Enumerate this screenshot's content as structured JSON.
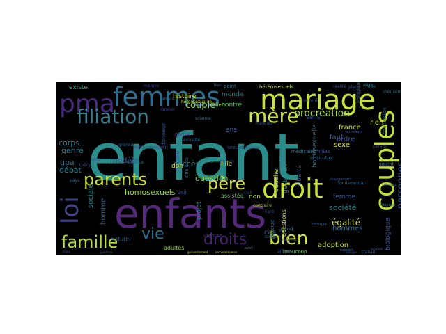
{
  "words": [
    {
      "text": "enfant",
      "color": "#2a8d8c",
      "rot": 0
    },
    {
      "text": "enfants",
      "color": "#55297a",
      "rot": 0
    },
    {
      "text": "mariage",
      "color": "#c9e23a",
      "rot": 0
    },
    {
      "text": "femmes",
      "color": "#2f6c8e",
      "rot": 0
    },
    {
      "text": "pma",
      "color": "#472d7b",
      "rot": 0
    },
    {
      "text": "couples",
      "color": "#c0e03a",
      "rot": -90
    },
    {
      "text": "droit",
      "color": "#c9e23a",
      "rot": 0
    },
    {
      "text": "filiation",
      "color": "#3f7f8e",
      "rot": 0
    },
    {
      "text": "mère",
      "color": "#d1e33f",
      "rot": 0
    },
    {
      "text": "parents",
      "color": "#c9e23a",
      "rot": 0
    },
    {
      "text": "père",
      "color": "#d8e54a",
      "rot": 0
    },
    {
      "text": "loi",
      "color": "#3f4788",
      "rot": -90
    },
    {
      "text": "famille",
      "color": "#b6dd48",
      "rot": 0
    },
    {
      "text": "vie",
      "color": "#2e6f8e",
      "rot": 0
    },
    {
      "text": "droits",
      "color": "#46226d",
      "rot": 0
    },
    {
      "text": "bien",
      "color": "#d3e33a",
      "rot": 0
    },
    {
      "text": "procréation",
      "color": "#a8db54",
      "rot": 0
    },
    {
      "text": "couple",
      "color": "#8dd24c",
      "rot": 0
    },
    {
      "text": "personnes",
      "color": "#3c5b8c",
      "rot": -90
    },
    {
      "text": "question",
      "color": "#8ad24e",
      "rot": 0
    },
    {
      "text": "homosexuels",
      "color": "#9fd83f",
      "rot": 0
    },
    {
      "text": "société",
      "color": "#26818e",
      "rot": 0
    },
    {
      "text": "égalité",
      "color": "#d7e54f",
      "rot": 0
    },
    {
      "text": "adoption",
      "color": "#c5e03a",
      "rot": 0
    },
    {
      "text": "gauche",
      "color": "#c2df3c",
      "rot": -90
    },
    {
      "text": "nature",
      "color": "#31558c",
      "rot": -90
    },
    {
      "text": "accès",
      "color": "#2a7c8e",
      "rot": 0
    },
    {
      "text": "france",
      "color": "#d2e43d",
      "rot": 0
    },
    {
      "text": "sexe",
      "color": "#d9e54c",
      "rot": 0
    },
    {
      "text": "hommes",
      "color": "#2d6d8e",
      "rot": 0
    },
    {
      "text": "homme",
      "color": "#3b5d8b",
      "rot": -90
    },
    {
      "text": "corps",
      "color": "#2a7b8e",
      "rot": 0
    },
    {
      "text": "modèle",
      "color": "#3a548b",
      "rot": 0
    },
    {
      "text": "débat",
      "color": "#26848e",
      "rot": 0
    },
    {
      "text": "gpa",
      "color": "#2f6d8e",
      "rot": 0
    },
    {
      "text": "sociale",
      "color": "#26878d",
      "rot": -90
    },
    {
      "text": "genre",
      "color": "#2a7b8e",
      "rot": 0
    },
    {
      "text": "ordre",
      "color": "#3a528b",
      "rot": 0
    },
    {
      "text": "projet",
      "color": "#24868e",
      "rot": -90
    },
    {
      "text": "ans",
      "color": "#3a5b8c",
      "rot": 0
    },
    {
      "text": "faut",
      "color": "#3c5a8c",
      "rot": 0
    },
    {
      "text": "contre",
      "color": "#4fc16b",
      "rot": 0
    },
    {
      "text": "sens",
      "color": "#31568b",
      "rot": 0
    },
    {
      "text": "rien",
      "color": "#cfe44a",
      "rot": 0
    },
    {
      "text": "monde",
      "color": "#25858e",
      "rot": 0
    },
    {
      "text": "cas",
      "color": "#2c718e",
      "rot": 0
    },
    {
      "text": "non",
      "color": "#a5db36",
      "rot": 0
    },
    {
      "text": "femme",
      "color": "#3b528b",
      "rot": 0
    },
    {
      "text": "existe",
      "color": "#22a884",
      "rot": 0
    },
    {
      "text": "don",
      "color": "#d9e54c",
      "rot": 0
    },
    {
      "text": "fille",
      "color": "#cfe23a",
      "rot": 0
    },
    {
      "text": "biologique",
      "color": "#3a548b",
      "rot": -90
    },
    {
      "text": "liberté",
      "color": "#3b518b",
      "rot": -90
    },
    {
      "text": "gestation",
      "color": "#21918c",
      "rot": -90
    },
    {
      "text": "homosexuelle",
      "color": "#2c6f8e",
      "rot": -90
    },
    {
      "text": "assistée",
      "color": "#5ac864",
      "rot": 0
    },
    {
      "text": "questions",
      "color": "#c5e03a",
      "rot": -90
    },
    {
      "text": "temps",
      "color": "#38588c",
      "rot": 0
    },
    {
      "text": "beaucoup",
      "color": "#5ec962",
      "rot": 0
    },
    {
      "text": "naturel",
      "color": "#35608d",
      "rot": 0
    },
    {
      "text": "adultes",
      "color": "#9bd93c",
      "rot": 0
    },
    {
      "text": "identité",
      "color": "#45337d",
      "rot": 0
    },
    {
      "text": "donneur",
      "color": "#38588c",
      "rot": -90
    },
    {
      "text": "histoire",
      "color": "#dde318",
      "rot": 0
    },
    {
      "text": "grande",
      "color": "#31688e",
      "rot": 0
    },
    {
      "text": "principe",
      "color": "#2f6b8e",
      "rot": -90
    },
    {
      "text": "point",
      "color": "#2a788e",
      "rot": 0
    },
    {
      "text": "hétérosexuels",
      "color": "#d4e24a",
      "rot": 0
    },
    {
      "text": "fiers",
      "color": "#a2da37",
      "rot": 0
    },
    {
      "text": "médicalement",
      "color": "#3f4889",
      "rot": 0
    },
    {
      "text": "familles",
      "color": "#3b528b",
      "rot": 0
    },
    {
      "text": "sexuelle",
      "color": "#414487",
      "rot": 0
    },
    {
      "text": "soient",
      "color": "#2e6e8e",
      "rot": 0
    },
    {
      "text": "conception",
      "color": "#31678e",
      "rot": -90
    },
    {
      "text": "grand",
      "color": "#30688e",
      "rot": 0
    },
    {
      "text": "voir",
      "color": "#3a548b",
      "rot": 0
    },
    {
      "text": "médicale",
      "color": "#2a778e",
      "rot": 0
    },
    {
      "text": "institution",
      "color": "#2c718e",
      "rot": 0
    },
    {
      "text": "mêmes",
      "color": "#433e85",
      "rot": 0
    },
    {
      "text": "enfance",
      "color": "#2c728e",
      "rot": 0
    },
    {
      "text": "porter",
      "color": "#3e4989",
      "rot": 0
    },
    {
      "text": "déjà",
      "color": "#1f9a8a",
      "rot": 0
    },
    {
      "text": "parent",
      "color": "#433e85",
      "rot": 0
    },
    {
      "text": "sexualité",
      "color": "#31688e",
      "rot": 0
    },
    {
      "text": "différence",
      "color": "#2a778e",
      "rot": -90
    },
    {
      "text": "irène",
      "color": "#3a548b",
      "rot": 0
    },
    {
      "text": "théry",
      "color": "#3b528b",
      "rot": 0
    },
    {
      "text": "travail",
      "color": "#31688e",
      "rot": 0
    },
    {
      "text": "sexes",
      "color": "#3b528b",
      "rot": 0
    },
    {
      "text": "lien",
      "color": "#2f6b8e",
      "rot": 0
    },
    {
      "text": "idée",
      "color": "#2c728e",
      "rot": 0
    },
    {
      "text": "réalité",
      "color": "#3a548b",
      "rot": 0
    },
    {
      "text": "désir",
      "color": "#2a778e",
      "rot": 0
    },
    {
      "text": "donner",
      "color": "#414487",
      "rot": 0
    },
    {
      "text": "pays",
      "color": "#31688e",
      "rot": 0
    },
    {
      "text": "civil",
      "color": "#3b528b",
      "rot": 0
    },
    {
      "text": "jamais",
      "color": "#2c728e",
      "rot": 0
    },
    {
      "text": "place",
      "color": "#3a548b",
      "rot": 0
    },
    {
      "text": "compte",
      "color": "#31688e",
      "rot": 0
    },
    {
      "text": "ailleurs",
      "color": "#3b528b",
      "rot": 0
    },
    {
      "text": "droite",
      "color": "#2f6b8e",
      "rot": 0
    },
    {
      "text": "besoin",
      "color": "#3a548b",
      "rot": 0
    },
    {
      "text": "problème",
      "color": "#2c728e",
      "rot": -90
    },
    {
      "text": "enjeu",
      "color": "#3b528b",
      "rot": 0
    },
    {
      "text": "juridique",
      "color": "#31688e",
      "rot": 0
    },
    {
      "text": "reconnaissance",
      "color": "#d2e21b",
      "rot": 0
    },
    {
      "text": "gouvernement",
      "color": "#bddf26",
      "rot": 0
    },
    {
      "text": "homosexualité",
      "color": "#c8e020",
      "rot": 0
    },
    {
      "text": "contraire",
      "color": "#b5de2b",
      "rot": 0
    },
    {
      "text": "origine",
      "color": "#3e4989",
      "rot": 0
    },
    {
      "text": "biologie",
      "color": "#3b528b",
      "rot": 0
    },
    {
      "text": "sociaux",
      "color": "#3a548b",
      "rot": 0
    },
    {
      "text": "mouvement",
      "color": "#2c728e",
      "rot": 0
    },
    {
      "text": "rapport",
      "color": "#31688e",
      "rot": 0
    },
    {
      "text": "avoir",
      "color": "#2f6b8e",
      "rot": 0
    },
    {
      "text": "devenir",
      "color": "#3b528b",
      "rot": 0
    },
    {
      "text": "biologiques",
      "color": "#31688e",
      "rot": -90
    },
    {
      "text": "ouverture",
      "color": "#3e4989",
      "rot": 0
    },
    {
      "text": "changement",
      "color": "#3b528b",
      "rot": 0
    },
    {
      "text": "fréquent",
      "color": "#2c728e",
      "rot": 0
    },
    {
      "text": "naissance",
      "color": "#3a548b",
      "rot": 0
    },
    {
      "text": "science",
      "color": "#2c728e",
      "rot": 0
    },
    {
      "text": "français",
      "color": "#3b528b",
      "rot": 0
    },
    {
      "text": "fondamental",
      "color": "#31688e",
      "rot": 0
    },
    {
      "text": "libre",
      "color": "#3a548b",
      "rot": 0
    },
    {
      "text": "stable",
      "color": "#2f6b8e",
      "rot": 0
    },
    {
      "text": "progrès",
      "color": "#3b528b",
      "rot": 0
    },
    {
      "text": "intérêt",
      "color": "#31688e",
      "rot": 0
    },
    {
      "text": "réforme",
      "color": "#3a548b",
      "rot": 0
    }
  ]
}
